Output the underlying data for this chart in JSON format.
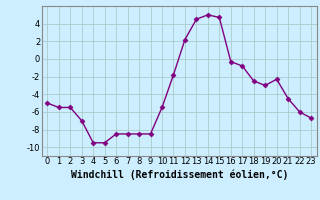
{
  "x": [
    0,
    1,
    2,
    3,
    4,
    5,
    6,
    7,
    8,
    9,
    10,
    11,
    12,
    13,
    14,
    15,
    16,
    17,
    18,
    19,
    20,
    21,
    22,
    23
  ],
  "y": [
    -5.0,
    -5.5,
    -5.5,
    -7.0,
    -9.5,
    -9.5,
    -8.5,
    -8.5,
    -8.5,
    -8.5,
    -5.5,
    -1.8,
    2.2,
    4.5,
    5.0,
    4.7,
    -0.3,
    -0.8,
    -2.5,
    -3.0,
    -2.3,
    -4.5,
    -6.0,
    -6.7
  ],
  "line_color": "#800080",
  "marker": "D",
  "marker_size": 2.5,
  "bg_color": "#cceeff",
  "grid_color": "#aacccc",
  "xlabel": "Windchill (Refroidissement éolien,°C)",
  "ylim": [
    -11,
    6
  ],
  "xlim": [
    -0.5,
    23.5
  ],
  "yticks": [
    -10,
    -8,
    -6,
    -4,
    -2,
    0,
    2,
    4
  ],
  "xticks": [
    0,
    1,
    2,
    3,
    4,
    5,
    6,
    7,
    8,
    9,
    10,
    11,
    12,
    13,
    14,
    15,
    16,
    17,
    18,
    19,
    20,
    21,
    22,
    23
  ],
  "xlabel_fontsize": 7,
  "tick_fontsize": 6,
  "linewidth": 1.0
}
